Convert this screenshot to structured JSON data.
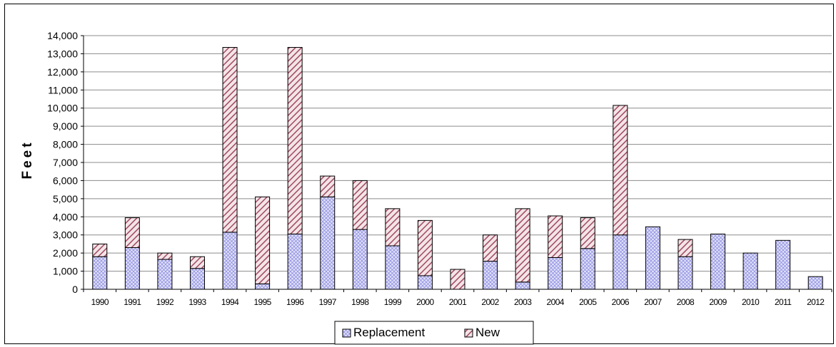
{
  "chart_data": {
    "type": "bar",
    "stacked": true,
    "title": "",
    "xlabel": "",
    "ylabel": "Feet",
    "ylim": [
      0,
      14000
    ],
    "ytick_step": 1000,
    "ytick_labels": [
      "0",
      "1,000",
      "2,000",
      "3,000",
      "4,000",
      "5,000",
      "6,000",
      "7,000",
      "8,000",
      "9,000",
      "10,000",
      "11,000",
      "12,000",
      "13,000",
      "14,000"
    ],
    "grid": true,
    "legend": "bottom",
    "categories": [
      "1990",
      "1991",
      "1992",
      "1993",
      "1994",
      "1995",
      "1996",
      "1997",
      "1998",
      "1999",
      "2000",
      "2001",
      "2002",
      "2003",
      "2004",
      "2005",
      "2006",
      "2007",
      "2008",
      "2009",
      "2010",
      "2011",
      "2012"
    ],
    "series": [
      {
        "name": "Replacement",
        "color": "#b9b9f0",
        "pattern": "crosshatch",
        "values": [
          1800,
          2300,
          1650,
          1150,
          3150,
          300,
          3050,
          5100,
          3300,
          2400,
          750,
          0,
          1550,
          400,
          1750,
          2250,
          3000,
          3450,
          1800,
          3050,
          2000,
          2700,
          700
        ]
      },
      {
        "name": "New",
        "color": "#a85a6e",
        "pattern": "diagonal",
        "values": [
          700,
          1650,
          350,
          650,
          10200,
          4800,
          10300,
          1150,
          2700,
          2050,
          3050,
          1100,
          1450,
          4050,
          2300,
          1700,
          7150,
          0,
          950,
          0,
          0,
          0,
          0
        ]
      }
    ]
  }
}
